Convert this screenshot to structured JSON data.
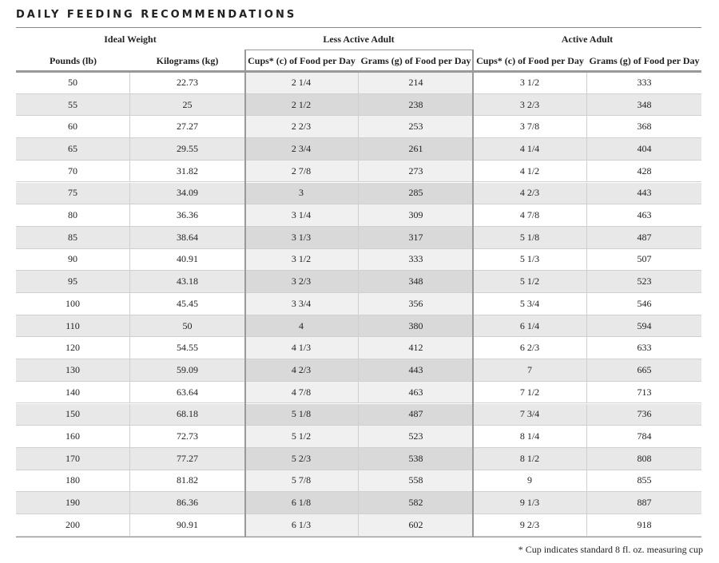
{
  "title": "DAILY FEEDING RECOMMENDATIONS",
  "groups": [
    "Ideal Weight",
    "Less Active Adult",
    "Active Adult"
  ],
  "columns": [
    "Pounds (lb)",
    "Kilograms (kg)",
    "Cups* (c) of Food per Day",
    "Grams (g) of Food per Day",
    "Cups* (c) of Food per Day",
    "Grams (g) of Food per Day"
  ],
  "rows": [
    [
      "50",
      "22.73",
      "2 1/4",
      "214",
      "3 1/2",
      "333"
    ],
    [
      "55",
      "25",
      "2 1/2",
      "238",
      "3 2/3",
      "348"
    ],
    [
      "60",
      "27.27",
      "2 2/3",
      "253",
      "3 7/8",
      "368"
    ],
    [
      "65",
      "29.55",
      "2 3/4",
      "261",
      "4 1/4",
      "404"
    ],
    [
      "70",
      "31.82",
      "2 7/8",
      "273",
      "4 1/2",
      "428"
    ],
    [
      "75",
      "34.09",
      "3",
      "285",
      "4 2/3",
      "443"
    ],
    [
      "80",
      "36.36",
      "3 1/4",
      "309",
      "4 7/8",
      "463"
    ],
    [
      "85",
      "38.64",
      "3 1/3",
      "317",
      "5 1/8",
      "487"
    ],
    [
      "90",
      "40.91",
      "3 1/2",
      "333",
      "5 1/3",
      "507"
    ],
    [
      "95",
      "43.18",
      "3 2/3",
      "348",
      "5 1/2",
      "523"
    ],
    [
      "100",
      "45.45",
      "3 3/4",
      "356",
      "5 3/4",
      "546"
    ],
    [
      "110",
      "50",
      "4",
      "380",
      "6 1/4",
      "594"
    ],
    [
      "120",
      "54.55",
      "4 1/3",
      "412",
      "6 2/3",
      "633"
    ],
    [
      "130",
      "59.09",
      "4 2/3",
      "443",
      "7",
      "665"
    ],
    [
      "140",
      "63.64",
      "4 7/8",
      "463",
      "7 1/2",
      "713"
    ],
    [
      "150",
      "68.18",
      "5 1/8",
      "487",
      "7 3/4",
      "736"
    ],
    [
      "160",
      "72.73",
      "5 1/2",
      "523",
      "8 1/4",
      "784"
    ],
    [
      "170",
      "77.27",
      "5 2/3",
      "538",
      "8 1/2",
      "808"
    ],
    [
      "180",
      "81.82",
      "5 7/8",
      "558",
      "9",
      "855"
    ],
    [
      "190",
      "86.36",
      "6 1/8",
      "582",
      "9 1/3",
      "887"
    ],
    [
      "200",
      "90.91",
      "6 1/3",
      "602",
      "9 2/3",
      "918"
    ]
  ],
  "footnote": "* Cup indicates standard 8 fl. oz. measuring cup"
}
